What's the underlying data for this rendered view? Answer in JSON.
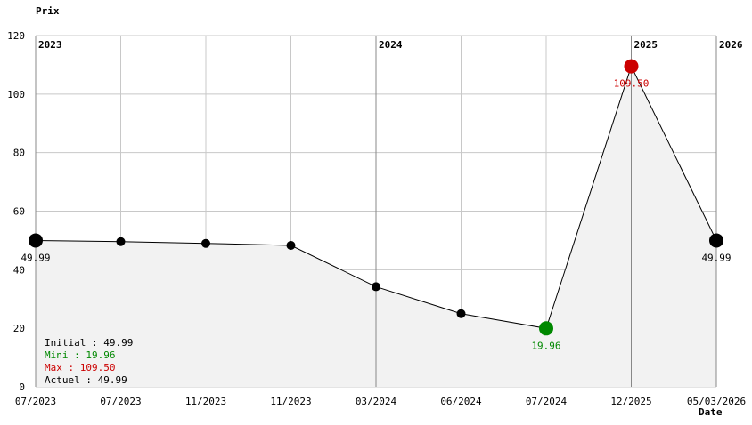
{
  "chart_data": {
    "type": "line",
    "title": "",
    "ylabel": "Prix",
    "xlabel": "Date",
    "ylim": [
      0,
      120
    ],
    "yticks": [
      0,
      20,
      40,
      60,
      80,
      100,
      120
    ],
    "grid": true,
    "x": [
      "07/2023",
      "07/2023",
      "11/2023",
      "11/2023",
      "03/2024",
      "06/2024",
      "07/2024",
      "12/2025",
      "05/03/2026"
    ],
    "values": [
      49.99,
      49.6,
      48.99,
      48.3,
      34.2,
      24.99,
      19.96,
      109.5,
      49.99
    ],
    "year_markers": [
      {
        "label": "2023",
        "index": 0
      },
      {
        "label": "2024",
        "index": 4
      },
      {
        "label": "2025",
        "index": 7
      },
      {
        "label": "2026",
        "index": 8
      }
    ],
    "point_labels": [
      {
        "index": 0,
        "text": "49.99",
        "color": "#000000"
      },
      {
        "index": 6,
        "text": "19.96",
        "color": "#008800"
      },
      {
        "index": 7,
        "text": "109.50",
        "color": "#cc0000"
      },
      {
        "index": 8,
        "text": "49.99",
        "color": "#000000"
      }
    ],
    "highlight": {
      "min_index": 6,
      "max_index": 7,
      "min_color": "#008800",
      "max_color": "#cc0000"
    },
    "fill_color": "#f2f2f2",
    "legend": {
      "placement": "bottom-left",
      "lines": [
        {
          "text": "Initial : 49.99",
          "color": "#000000"
        },
        {
          "text": "Mini : 19.96",
          "color": "#008800"
        },
        {
          "text": "Max : 109.50",
          "color": "#cc0000"
        },
        {
          "text": "Actuel : 49.99",
          "color": "#000000"
        }
      ]
    }
  }
}
